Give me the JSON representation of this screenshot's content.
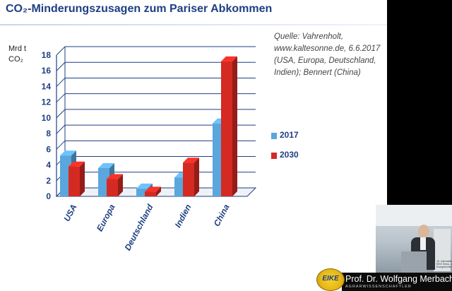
{
  "slide": {
    "title": "CO₂-Minderungszusagen zum Pariser Abkommen",
    "unit_line1": "Mrd t",
    "unit_line2": "CO₂",
    "source_lines": [
      "Quelle: Vahrenholt,",
      "www.kaltesonne.de, 6.6.2017",
      "(USA, Europa, Deutschland,",
      "Indien); Bennert (China)"
    ]
  },
  "chart_data": {
    "type": "bar",
    "categories": [
      "USA",
      "Europa",
      "Deutschland",
      "Indien",
      "China"
    ],
    "series": [
      {
        "name": "2017",
        "color": "#5aa6dd",
        "values": [
          5.2,
          3.6,
          1.0,
          2.4,
          9.3
        ]
      },
      {
        "name": "2030",
        "color": "#d42a22",
        "values": [
          3.8,
          2.2,
          0.6,
          4.3,
          17.2
        ]
      }
    ],
    "ylim": [
      0,
      18
    ],
    "yticks": [
      0,
      2,
      4,
      6,
      8,
      10,
      12,
      14,
      16,
      18
    ],
    "grid": true,
    "legend_position": "right",
    "style": "3d"
  },
  "video_overlay": {
    "speaker_name": "Prof. Dr. Wolfgang Merbach",
    "speaker_subtitle": "AGRARWISSENSCHAFTLER",
    "logo_text": "EIKE",
    "conference_caption": [
      "15. Internationale",
      "EIKE Klima- und",
      "Energiekonferenz"
    ]
  }
}
